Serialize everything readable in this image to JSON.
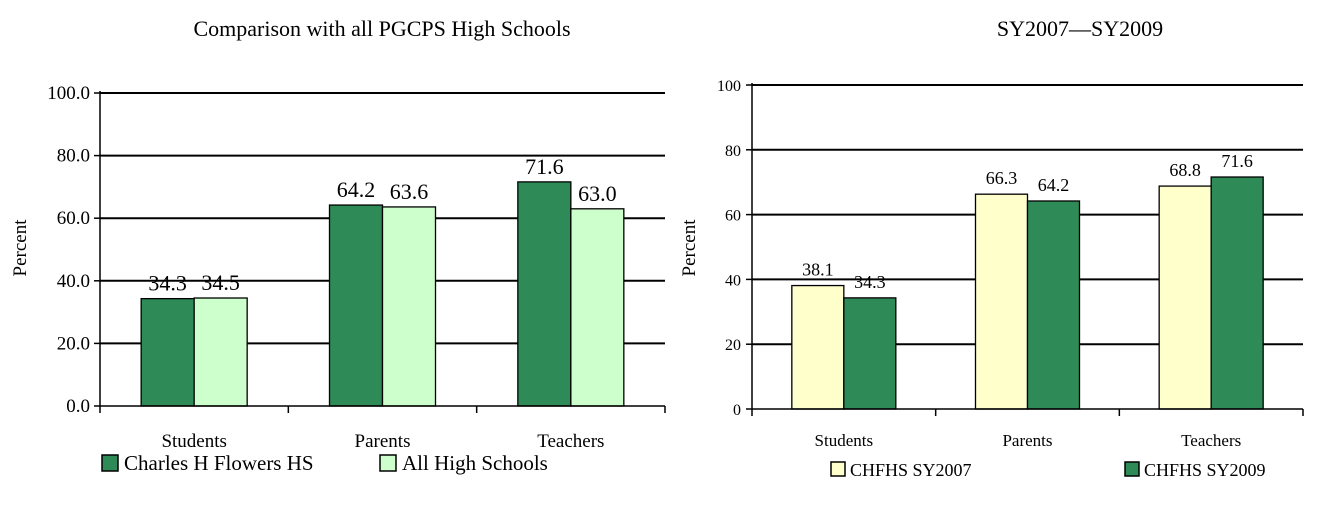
{
  "charts": [
    {
      "title": "Comparison with all PGCPS High Schools",
      "ylabel": "Percent",
      "legend": [
        "Charles H Flowers HS",
        "All High Schools"
      ]
    },
    {
      "title": "SY2007—SY2009",
      "ylabel": "Percent",
      "legend": [
        "CHFHS SY2007",
        "CHFHS SY2009"
      ]
    }
  ],
  "chart_data": [
    {
      "type": "bar",
      "title": "Comparison with all PGCPS High Schools",
      "xlabel": "",
      "ylabel": "Percent",
      "categories": [
        "Students",
        "Parents",
        "Teachers"
      ],
      "series": [
        {
          "name": "Charles H Flowers HS",
          "values": [
            34.3,
            64.2,
            71.6
          ],
          "labels": [
            "34.3",
            "64.2",
            "71.6"
          ],
          "color": "#2e8b57"
        },
        {
          "name": "All High Schools",
          "values": [
            34.5,
            63.6,
            63.0
          ],
          "labels": [
            "34.5",
            "63.6",
            "63.0"
          ],
          "color": "#ccffcc"
        }
      ],
      "ylim": [
        0,
        100
      ],
      "yticks": [
        "0.0",
        "20.0",
        "40.0",
        "60.0",
        "80.0",
        "100.0"
      ],
      "grid": true,
      "legend_position": "bottom"
    },
    {
      "type": "bar",
      "title": "SY2007—SY2009",
      "xlabel": "",
      "ylabel": "Percent",
      "categories": [
        "Students",
        "Parents",
        "Teachers"
      ],
      "series": [
        {
          "name": "CHFHS SY2007",
          "values": [
            38.1,
            66.3,
            68.8
          ],
          "labels": [
            "38.1",
            "66.3",
            "68.8"
          ],
          "color": "#ffffcc"
        },
        {
          "name": "CHFHS SY2009",
          "values": [
            34.3,
            64.2,
            71.6
          ],
          "labels": [
            "34.3",
            "64.2",
            "71.6"
          ],
          "color": "#2e8b57"
        }
      ],
      "ylim": [
        0,
        100
      ],
      "yticks": [
        "0",
        "20",
        "40",
        "60",
        "80",
        "100"
      ],
      "grid": true,
      "legend_position": "bottom"
    }
  ]
}
